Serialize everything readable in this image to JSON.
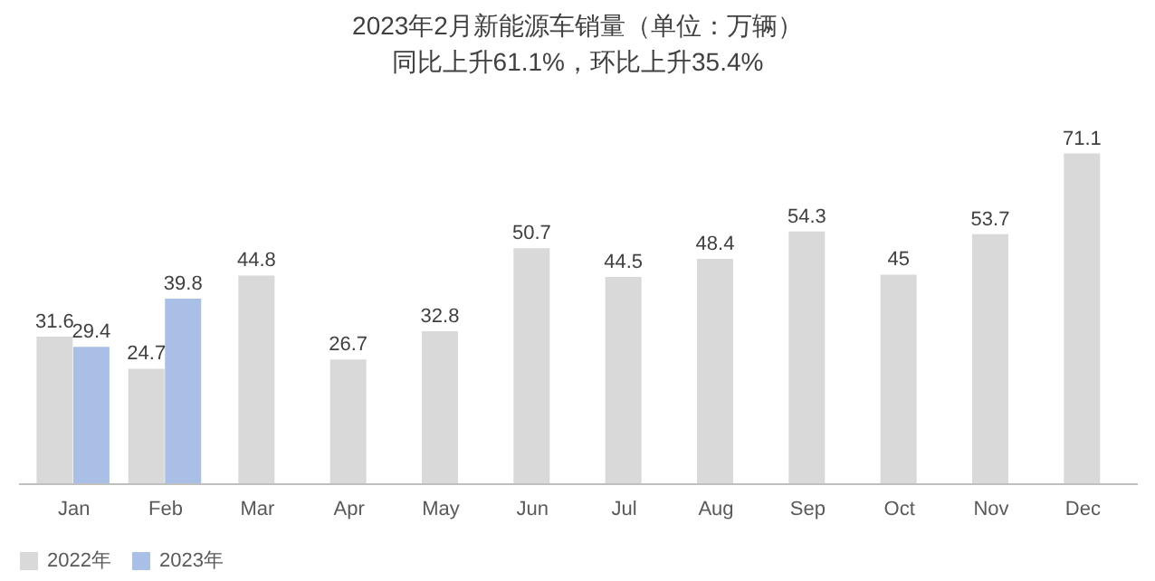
{
  "chart_data": {
    "type": "bar",
    "title": "2023年2月新能源车销量（单位：万辆）",
    "subtitle": "同比上升61.1%，环比上升35.4%",
    "categories": [
      "Jan",
      "Feb",
      "Mar",
      "Apr",
      "May",
      "Jun",
      "Jul",
      "Aug",
      "Sep",
      "Oct",
      "Nov",
      "Dec"
    ],
    "series": [
      {
        "name": "2022年",
        "color": "#d9d9d9",
        "values": [
          31.6,
          24.7,
          44.8,
          26.7,
          32.8,
          50.7,
          44.5,
          48.4,
          54.3,
          45,
          53.7,
          71.1
        ]
      },
      {
        "name": "2023年",
        "color": "#a9bfe6",
        "values": [
          29.4,
          39.8,
          null,
          null,
          null,
          null,
          null,
          null,
          null,
          null,
          null,
          null
        ]
      }
    ],
    "data_labels": true,
    "legend": "bottom",
    "grid": false
  }
}
